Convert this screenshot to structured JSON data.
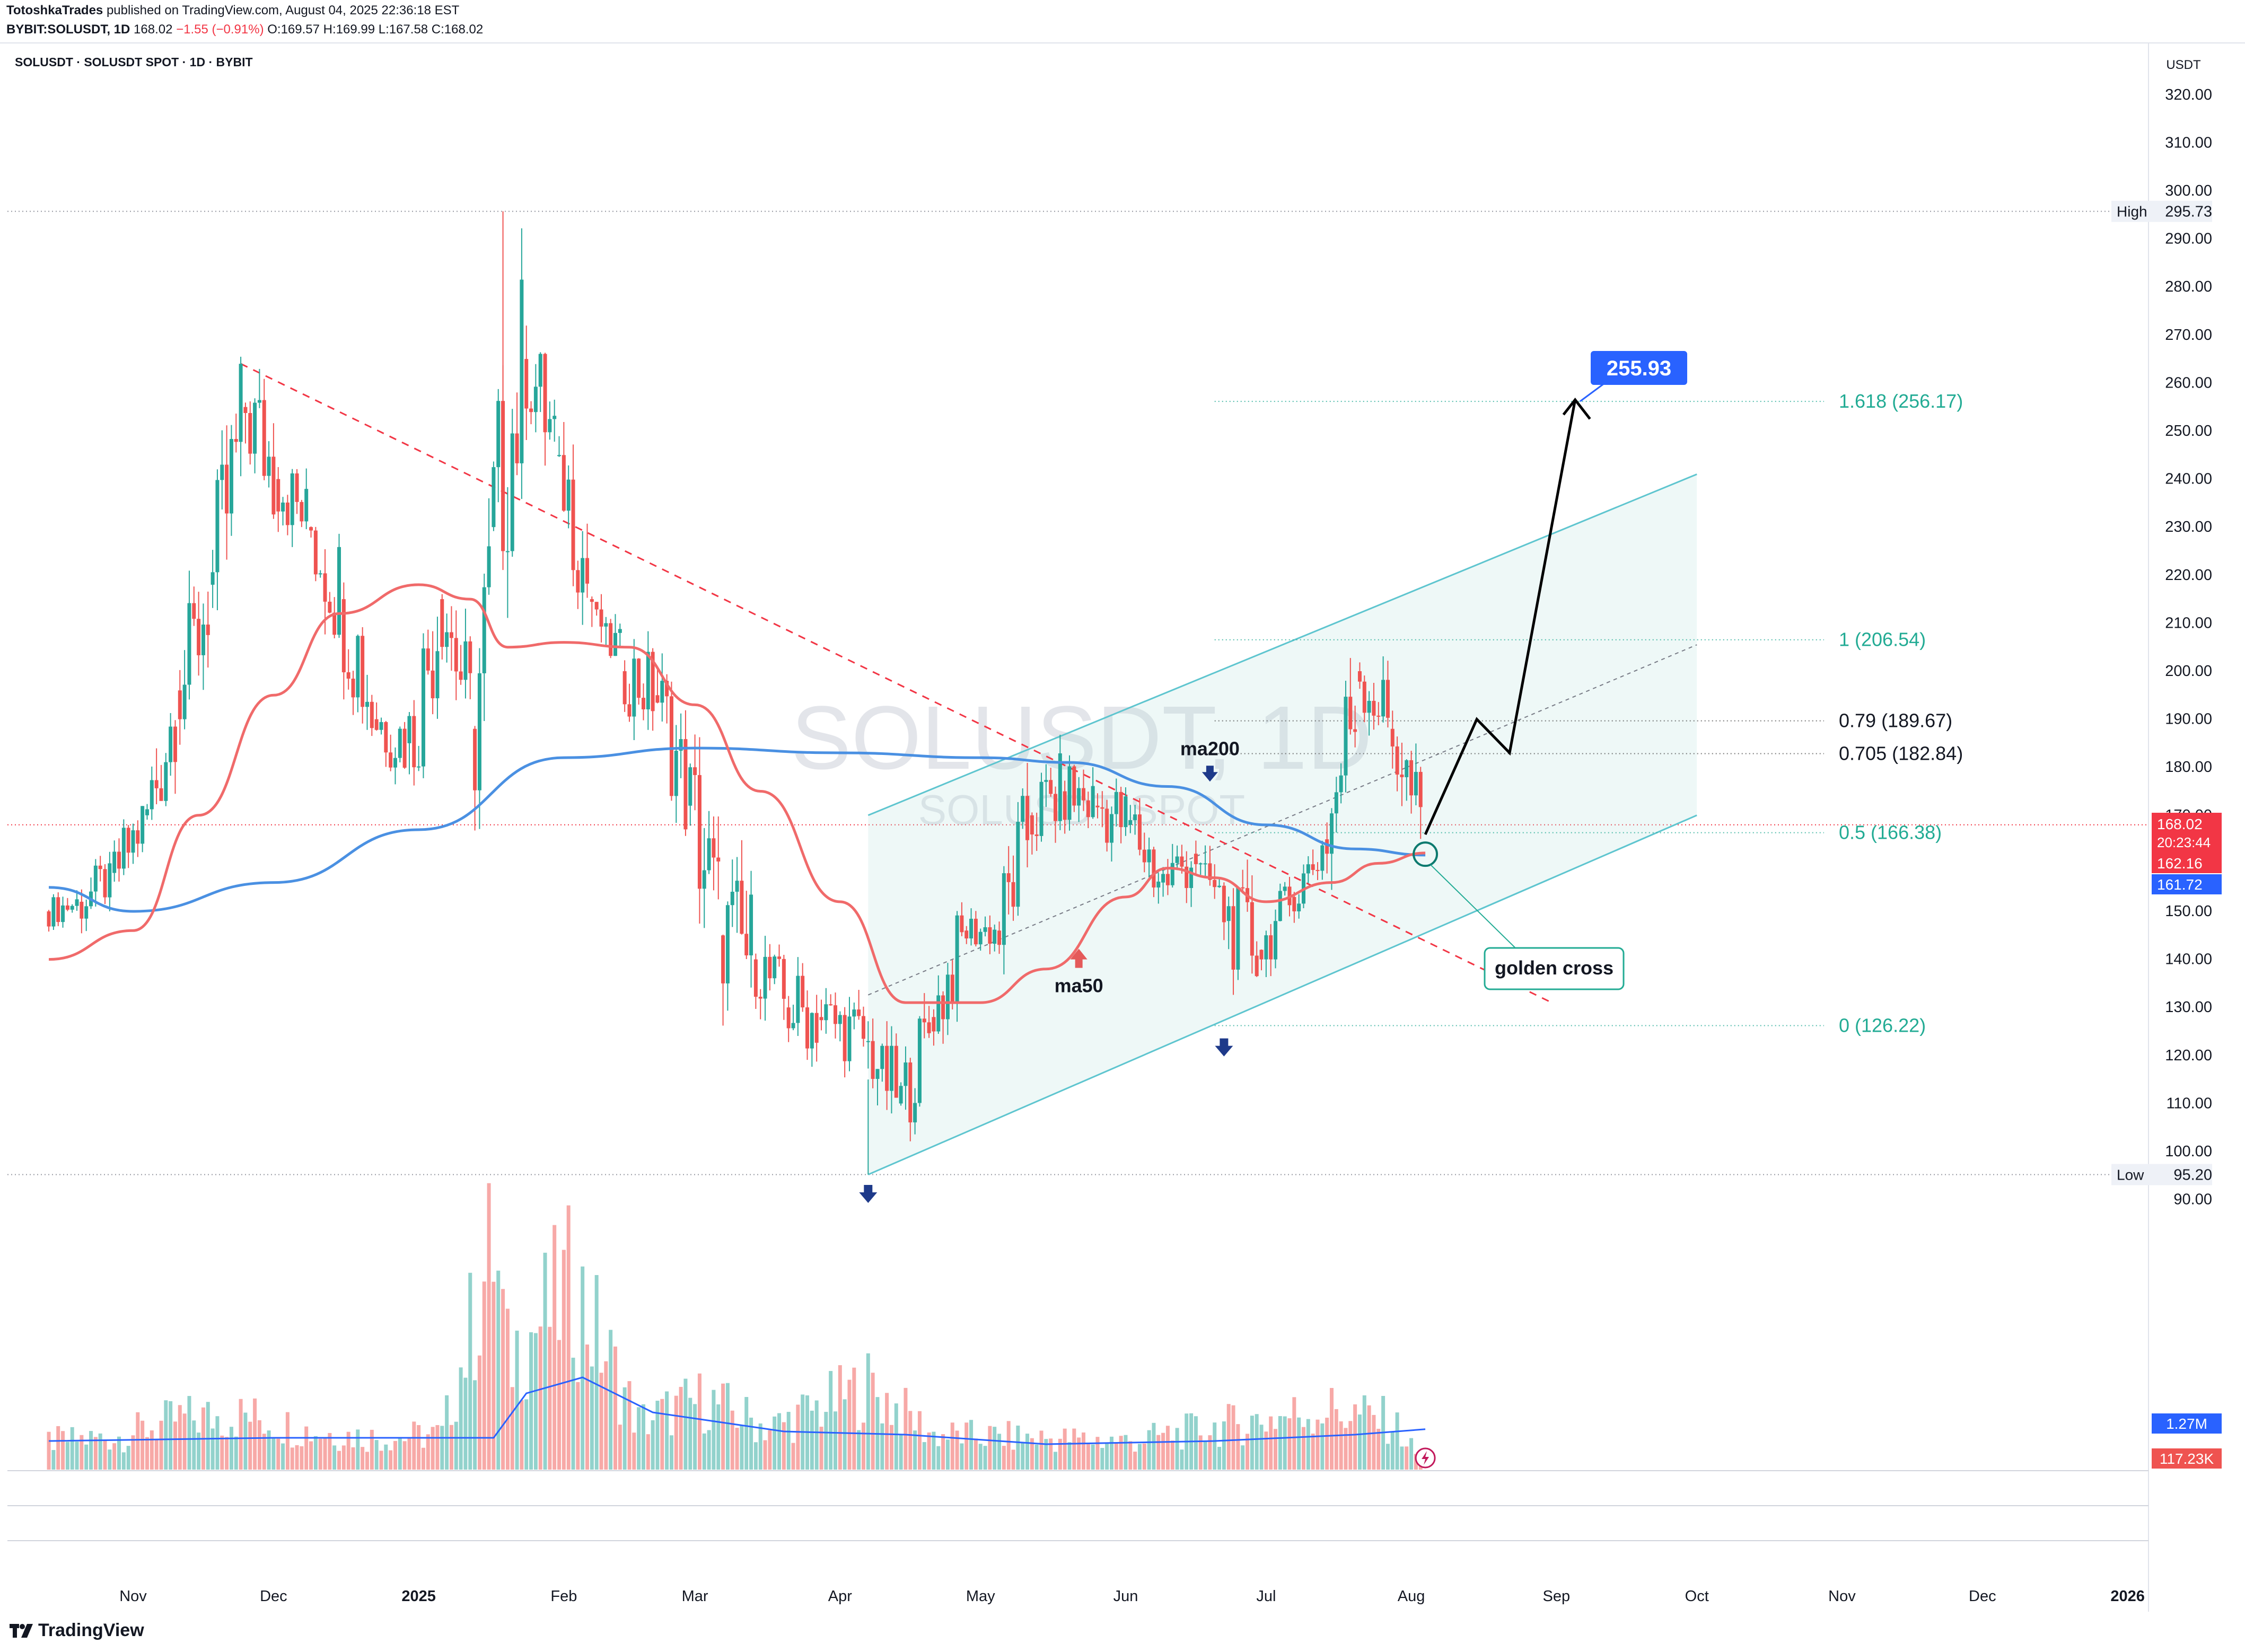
{
  "header": {
    "publisher": "TotoshkaTrades",
    "published_text": " published on TradingView.com, August 04, 2025 22:36:18 EST",
    "ticker": "BYBIT:SOLUSDT, 1D",
    "last": "168.02",
    "change": "−1.55 (−0.91%)",
    "ohlc": "O:169.57 H:169.99 L:167.58 C:168.02"
  },
  "symbol_line": "SOLUSDT · SOLUSDT SPOT · 1D · BYBIT",
  "watermark": {
    "main": "SOLUSDT, 1D",
    "sub": "SOLUSDT SPOT"
  },
  "footer": {
    "brand": "TradingView"
  },
  "colors": {
    "up": "#26a69a",
    "down": "#ef5350",
    "ma50": "#f06a6a",
    "ma200": "#4a90e2",
    "fib": "#22ab94",
    "target": "#2962ff",
    "trendline": "#f23645",
    "channel": "#5ec5cf"
  },
  "chart_data": {
    "type": "candlestick",
    "currency": "USDT",
    "yscale": "linear",
    "ylim": [
      87,
      327
    ],
    "yticks": [
      "90.00",
      "100.00",
      "110.00",
      "120.00",
      "130.00",
      "140.00",
      "150.00",
      "160.00",
      "170.00",
      "180.00",
      "190.00",
      "200.00",
      "210.00",
      "220.00",
      "230.00",
      "240.00",
      "250.00",
      "260.00",
      "270.00",
      "280.00",
      "290.00",
      "300.00",
      "310.00",
      "320.00"
    ],
    "xticks": [
      "Nov",
      "Dec",
      "2025",
      "Feb",
      "Mar",
      "Apr",
      "May",
      "Jun",
      "Jul",
      "Aug",
      "Sep",
      "Oct",
      "Nov",
      "Dec",
      "2026"
    ],
    "high_marker": {
      "label": "High",
      "value": 295.73
    },
    "low_marker": {
      "label": "Low",
      "value": 95.2
    },
    "price_labels": [
      {
        "value": "168.02",
        "sub": "20:23:44",
        "color": "#f23645"
      },
      {
        "value": "162.16",
        "color": "#f23645"
      },
      {
        "value": "161.72",
        "color": "#2962ff"
      }
    ],
    "ma_labels": [
      {
        "text": "ma200",
        "arrow": "down",
        "price": 179,
        "date": "2025-06-19"
      },
      {
        "text": "ma50",
        "arrow": "up",
        "price": 140,
        "date": "2025-05-22"
      }
    ],
    "fib_levels": [
      {
        "ratio": "1.618",
        "value": 256.17,
        "color": "#22ab94"
      },
      {
        "ratio": "1",
        "value": 206.54,
        "color": "#22ab94"
      },
      {
        "ratio": "0.79",
        "value": 189.67,
        "color": "#131722"
      },
      {
        "ratio": "0.705",
        "value": 182.84,
        "color": "#131722"
      },
      {
        "ratio": "0.5",
        "value": 166.38,
        "color": "#22ab94"
      },
      {
        "ratio": "0",
        "value": 126.22,
        "color": "#22ab94"
      }
    ],
    "target_label": "255.93",
    "annotation": "golden cross",
    "volume": {
      "ma_label": "1.27M",
      "current_label": "117.23K"
    },
    "series": [
      {
        "name": "ohlc",
        "points": [
          [
            "2024-10-14",
            150,
            155,
            146,
            152
          ],
          [
            "2024-10-21",
            152,
            160,
            145,
            158
          ],
          [
            "2024-10-28",
            158,
            175,
            155,
            170
          ],
          [
            "2024-11-04",
            170,
            200,
            168,
            196
          ],
          [
            "2024-11-11",
            196,
            225,
            190,
            218
          ],
          [
            "2024-11-18",
            218,
            264,
            215,
            255
          ],
          [
            "2024-11-25",
            255,
            263,
            225,
            240
          ],
          [
            "2024-12-02",
            240,
            247,
            222,
            230
          ],
          [
            "2024-12-09",
            230,
            240,
            200,
            215
          ],
          [
            "2024-12-16",
            215,
            225,
            180,
            190
          ],
          [
            "2024-12-23",
            190,
            200,
            176,
            185
          ],
          [
            "2024-12-30",
            185,
            222,
            180,
            215
          ],
          [
            "2025-01-06",
            215,
            220,
            185,
            188
          ],
          [
            "2025-01-13",
            188,
            226,
            175,
            230
          ],
          [
            "2025-01-17",
            230,
            296,
            225,
            265
          ],
          [
            "2025-01-24",
            265,
            270,
            235,
            245
          ],
          [
            "2025-01-31",
            245,
            240,
            205,
            215
          ],
          [
            "2025-02-07",
            215,
            210,
            190,
            200
          ],
          [
            "2025-02-14",
            200,
            205,
            180,
            195
          ],
          [
            "2025-02-21",
            195,
            198,
            165,
            172
          ],
          [
            "2025-02-28",
            172,
            180,
            135,
            145
          ],
          [
            "2025-03-07",
            145,
            180,
            135,
            140
          ],
          [
            "2025-03-14",
            140,
            148,
            125,
            130
          ],
          [
            "2025-03-21",
            130,
            145,
            120,
            128
          ],
          [
            "2025-03-28",
            128,
            135,
            115,
            123
          ],
          [
            "2025-04-07",
            123,
            122,
            95,
            110
          ],
          [
            "2025-04-14",
            110,
            132,
            106,
            128
          ],
          [
            "2025-04-21",
            128,
            150,
            125,
            146
          ],
          [
            "2025-04-28",
            146,
            152,
            140,
            146
          ],
          [
            "2025-05-05",
            146,
            175,
            142,
            170
          ],
          [
            "2025-05-12",
            170,
            185,
            160,
            175
          ],
          [
            "2025-05-19",
            175,
            187,
            165,
            172
          ],
          [
            "2025-05-26",
            172,
            182,
            160,
            168
          ],
          [
            "2025-06-02",
            168,
            172,
            148,
            156
          ],
          [
            "2025-06-09",
            156,
            168,
            148,
            162
          ],
          [
            "2025-06-16",
            162,
            160,
            142,
            148
          ],
          [
            "2025-06-23",
            148,
            155,
            126,
            142
          ],
          [
            "2025-06-30",
            142,
            158,
            140,
            153
          ],
          [
            "2025-07-07",
            153,
            168,
            150,
            165
          ],
          [
            "2025-07-14",
            165,
            206,
            162,
            200
          ],
          [
            "2025-07-21",
            200,
            206,
            180,
            188
          ],
          [
            "2025-07-28",
            188,
            190,
            158,
            163
          ],
          [
            "2025-08-04",
            163,
            170,
            160,
            168
          ]
        ]
      },
      {
        "name": "ma50",
        "points": [
          [
            "2024-10-14",
            140
          ],
          [
            "2024-11-01",
            146
          ],
          [
            "2024-11-15",
            170
          ],
          [
            "2024-12-01",
            195
          ],
          [
            "2024-12-15",
            212
          ],
          [
            "2025-01-01",
            218
          ],
          [
            "2025-01-12",
            215
          ],
          [
            "2025-01-20",
            205
          ],
          [
            "2025-02-01",
            206
          ],
          [
            "2025-02-15",
            205
          ],
          [
            "2025-03-01",
            193
          ],
          [
            "2025-03-15",
            175
          ],
          [
            "2025-04-01",
            152
          ],
          [
            "2025-04-15",
            131
          ],
          [
            "2025-05-01",
            131
          ],
          [
            "2025-05-15",
            138
          ],
          [
            "2025-06-01",
            153
          ],
          [
            "2025-06-10",
            159
          ],
          [
            "2025-06-20",
            157
          ],
          [
            "2025-07-01",
            152
          ],
          [
            "2025-07-15",
            156
          ],
          [
            "2025-07-25",
            160
          ],
          [
            "2025-08-04",
            162.16
          ]
        ]
      },
      {
        "name": "ma200",
        "points": [
          [
            "2024-10-14",
            155
          ],
          [
            "2024-11-01",
            150
          ],
          [
            "2024-12-01",
            156
          ],
          [
            "2025-01-01",
            167
          ],
          [
            "2025-02-01",
            182
          ],
          [
            "2025-03-01",
            184
          ],
          [
            "2025-04-01",
            183
          ],
          [
            "2025-05-01",
            182
          ],
          [
            "2025-05-20",
            181
          ],
          [
            "2025-06-10",
            176
          ],
          [
            "2025-07-01",
            168
          ],
          [
            "2025-07-20",
            163
          ],
          [
            "2025-08-04",
            161.72
          ]
        ]
      },
      {
        "name": "volume",
        "points": [
          [
            "2024-10-14",
            0.9
          ],
          [
            "2024-10-28",
            1.0
          ],
          [
            "2024-11-11",
            1.6
          ],
          [
            "2024-11-25",
            1.7
          ],
          [
            "2024-12-09",
            1.2
          ],
          [
            "2024-12-23",
            1.0
          ],
          [
            "2025-01-06",
            1.1
          ],
          [
            "2025-01-17",
            7.0
          ],
          [
            "2025-01-20",
            3.5
          ],
          [
            "2025-02-03",
            5.8
          ],
          [
            "2025-02-17",
            1.5
          ],
          [
            "2025-03-03",
            2.2
          ],
          [
            "2025-03-17",
            1.3
          ],
          [
            "2025-04-07",
            2.6
          ],
          [
            "2025-04-21",
            1.1
          ],
          [
            "2025-05-12",
            1.0
          ],
          [
            "2025-06-02",
            0.9
          ],
          [
            "2025-06-23",
            1.4
          ],
          [
            "2025-07-14",
            1.9
          ],
          [
            "2025-07-28",
            1.5
          ],
          [
            "2025-08-04",
            0.12
          ]
        ]
      }
    ]
  }
}
